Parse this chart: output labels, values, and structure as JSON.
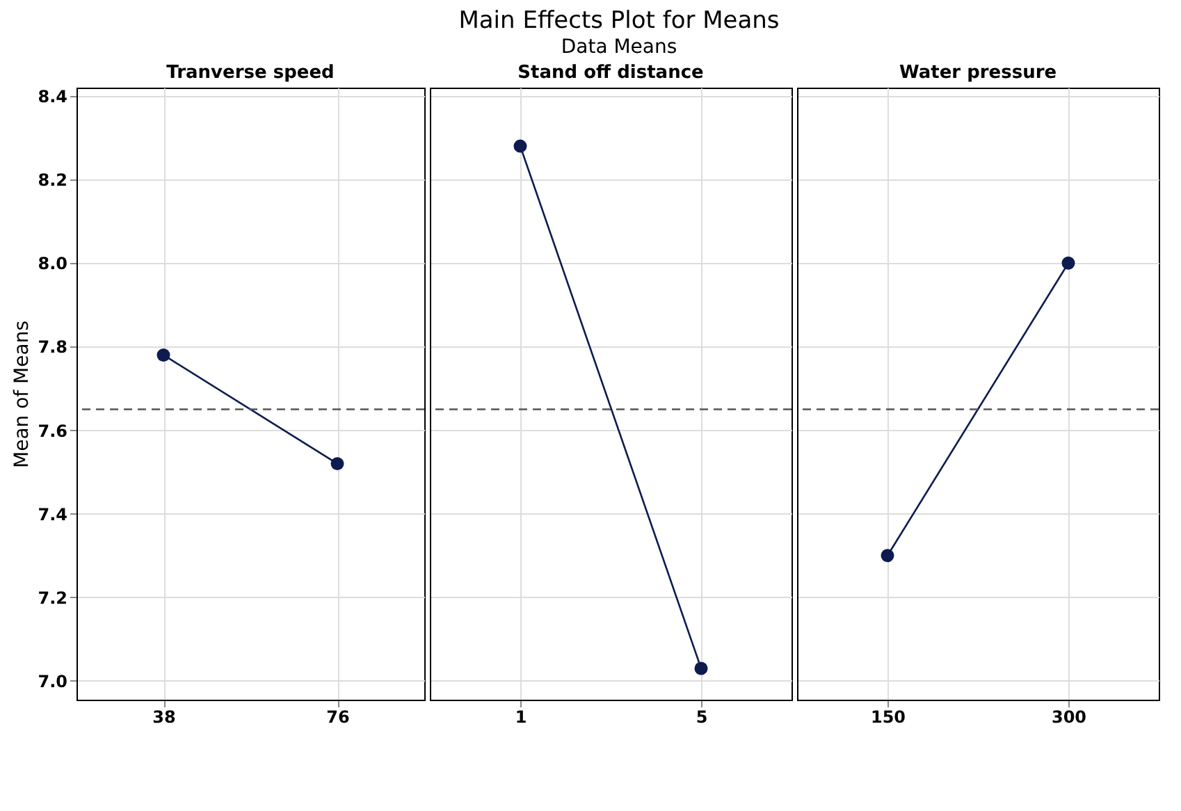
{
  "chart_data": [
    {
      "type": "other",
      "title": "Main Effects Plot for Means",
      "subtitle": "Data Means"
    },
    {
      "type": "line",
      "xlabel": "Tranverse speed",
      "ylabel": "Mean of Means",
      "categories": [
        "38",
        "76"
      ],
      "series": [
        {
          "color": "#0d1b4f",
          "values": [
            7.78,
            7.52
          ]
        }
      ],
      "ylim": [
        6.955,
        8.42
      ],
      "yticks": [
        {
          "value": 7.0,
          "label": "7.0"
        },
        7.2,
        7.4,
        7.6,
        7.8,
        {
          "value": 8.0,
          "label": "8.0"
        },
        8.2,
        8.4
      ],
      "grid": true,
      "marker": "circle",
      "line_style": "solid",
      "ref_lines": [
        {
          "axis": "y",
          "value": 7.65,
          "color": "#555555",
          "line_style": "dashed"
        }
      ]
    },
    {
      "type": "line",
      "xlabel": "Stand off distance",
      "categories": [
        "1",
        "5"
      ],
      "series": [
        {
          "color": "#0d1b4f",
          "values": [
            8.28,
            7.03
          ]
        }
      ],
      "ylim": [
        6.955,
        8.42
      ],
      "yticks": [
        7.0,
        7.2,
        7.4,
        7.6,
        7.8,
        8.0,
        8.2,
        8.4
      ],
      "grid": true,
      "marker": "circle",
      "line_style": "solid",
      "tick_labels": "x",
      "ref_lines": [
        {
          "axis": "y",
          "value": 7.65,
          "color": "#555555",
          "line_style": "dashed"
        }
      ]
    },
    {
      "type": "line",
      "xlabel": "Water pressure",
      "categories": [
        "150",
        "300"
      ],
      "series": [
        {
          "color": "#0d1b4f",
          "values": [
            7.3,
            8.0
          ]
        }
      ],
      "ylim": [
        6.955,
        8.42
      ],
      "yticks": [
        7.0,
        7.2,
        7.4,
        7.6,
        7.8,
        8.0,
        8.2,
        8.4
      ],
      "grid": true,
      "marker": "circle",
      "line_style": "solid",
      "tick_labels": "x",
      "ref_lines": [
        {
          "axis": "y",
          "value": 7.65,
          "color": "#555555",
          "line_style": "dashed"
        }
      ]
    }
  ]
}
